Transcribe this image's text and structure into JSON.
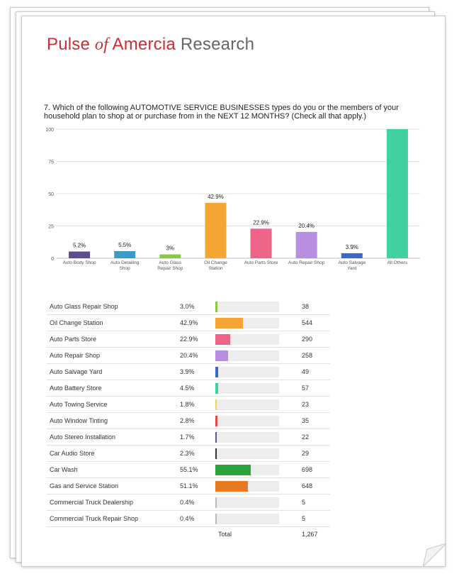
{
  "brand": {
    "part1": "Pulse ",
    "part2": "of",
    "part3": " Amercia",
    "part4": " Research"
  },
  "question": "7. Which of the following AUTOMOTIVE SERVICE BUSINESSES types do you or the members of your household plan to shop at or purchase from in the NEXT 12 MONTHS? (Check all that apply.)",
  "chart_data": {
    "type": "bar",
    "categories": [
      [
        "Auto Body Shop"
      ],
      [
        "Auto Detailing",
        "Shop"
      ],
      [
        "Auto Glass",
        "Repair Shop"
      ],
      [
        "Oil Change",
        "Station"
      ],
      [
        "Auto Parts Store"
      ],
      [
        "Auto Repair Shop"
      ],
      [
        "Auto Salvage",
        "Yard"
      ],
      [
        "All Others"
      ]
    ],
    "values": [
      5.2,
      5.5,
      3,
      42.9,
      22.9,
      20.4,
      3.9,
      100
    ],
    "value_labels": [
      "5.2%",
      "5.5%",
      "3%",
      "42.9%",
      "22.9%",
      "20.4%",
      "3.9%",
      ""
    ],
    "colors": [
      "#5d4c8f",
      "#3a9bc9",
      "#8dc63f",
      "#f5a534",
      "#ee6486",
      "#b88fde",
      "#3b68c8",
      "#3fd2a0"
    ],
    "ylim": [
      0,
      100
    ],
    "yticks": [
      0,
      25,
      50,
      75,
      100
    ],
    "grid": true
  },
  "table": {
    "rows": [
      {
        "label": "Auto Glass Repair Shop",
        "pct": "3.0%",
        "value": 3.0,
        "count": "38",
        "color": "#8dc63f"
      },
      {
        "label": "Oil Change Station",
        "pct": "42.9%",
        "value": 42.9,
        "count": "544",
        "color": "#f5a534"
      },
      {
        "label": "Auto Parts Store",
        "pct": "22.9%",
        "value": 22.9,
        "count": "290",
        "color": "#ee6486"
      },
      {
        "label": "Auto Repair Shop",
        "pct": "20.4%",
        "value": 20.4,
        "count": "258",
        "color": "#b88fde"
      },
      {
        "label": "Auto Salvage Yard",
        "pct": "3.9%",
        "value": 3.9,
        "count": "49",
        "color": "#3b68c8"
      },
      {
        "label": "Auto Battery Store",
        "pct": "4.5%",
        "value": 4.5,
        "count": "57",
        "color": "#3fd2a0"
      },
      {
        "label": "Auto Towing Service",
        "pct": "1.8%",
        "value": 1.8,
        "count": "23",
        "color": "#f2d35a"
      },
      {
        "label": "Auto Window Tinting",
        "pct": "2.8%",
        "value": 2.8,
        "count": "35",
        "color": "#e04848"
      },
      {
        "label": "Auto Stereo Installation",
        "pct": "1.7%",
        "value": 1.7,
        "count": "22",
        "color": "#5d5a8a"
      },
      {
        "label": "Car Audio Store",
        "pct": "2.3%",
        "value": 2.3,
        "count": "29",
        "color": "#2f3445"
      },
      {
        "label": "Car Wash",
        "pct": "55.1%",
        "value": 55.1,
        "count": "698",
        "color": "#2ea33b"
      },
      {
        "label": "Gas and Service Station",
        "pct": "51.1%",
        "value": 51.1,
        "count": "648",
        "color": "#e57a1f"
      },
      {
        "label": "Commercial Truck Dealership",
        "pct": "0.4%",
        "value": 0.4,
        "count": "5",
        "color": "#bbbbbb"
      },
      {
        "label": "Commercial Truck Repair Shop",
        "pct": "0.4%",
        "value": 0.4,
        "count": "5",
        "color": "#bbbbbb"
      }
    ],
    "total_label": "Total",
    "total_count": "1,267"
  }
}
